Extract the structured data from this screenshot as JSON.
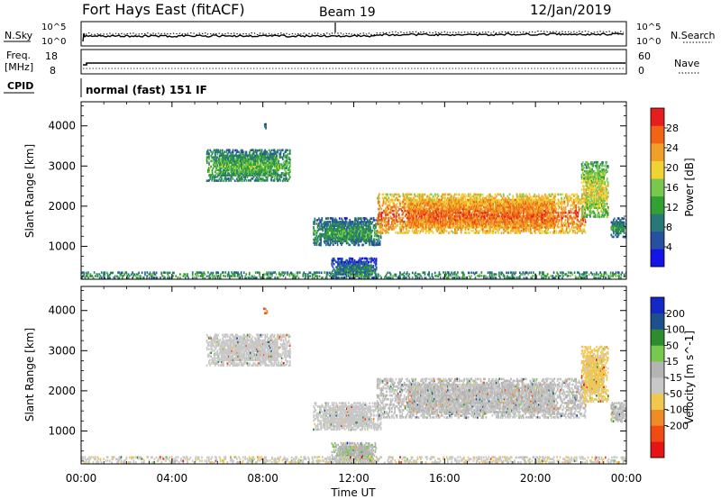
{
  "header": {
    "title": "Fort Hays East (fitACF)",
    "beam": "Beam 19",
    "date": "12/Jan/2019"
  },
  "noise_panel": {
    "left_label": "N.Sky",
    "right_label": "N.Search",
    "left_ticks": [
      "10^5",
      "10^0"
    ],
    "right_ticks": [
      "10^5",
      "10^0"
    ]
  },
  "freq_panel": {
    "left_label_1": "Freq.",
    "left_label_2": "[MHz]",
    "left_ticks": [
      "18",
      "8"
    ],
    "right_label": "Nave",
    "right_ticks": [
      "60",
      "0"
    ]
  },
  "cpid": {
    "label": "CPID",
    "value": "normal (fast) 151 IF"
  },
  "colors": {
    "power_scale": [
      "#1414e6",
      "#2850a0",
      "#287878",
      "#32a032",
      "#78c850",
      "#f0d232",
      "#f0a028",
      "#f06414",
      "#e61e1e"
    ],
    "velocity_scale": [
      "#e61414",
      "#f04b14",
      "#f08c28",
      "#f0c850",
      "#c8c8c8",
      "#b4b4b4",
      "#78c850",
      "#2d8c2d",
      "#1e508c",
      "#1428c8"
    ]
  },
  "chart_data": [
    {
      "type": "heatmap",
      "title": "Power",
      "xlabel": "",
      "ylabel": "Slant Range [km]",
      "x_ticks": [
        "00:00",
        "04:00",
        "08:00",
        "12:00",
        "16:00",
        "20:00",
        "00:00"
      ],
      "xlim": [
        0,
        24
      ],
      "y_ticks": [
        1000,
        2000,
        3000,
        4000
      ],
      "ylim": [
        180,
        4600
      ],
      "colorbar": {
        "label": "Power [dB]",
        "ticks": [
          4,
          8,
          12,
          16,
          20,
          24,
          28
        ],
        "range": [
          0,
          32
        ]
      },
      "regions": [
        {
          "t": [
            5.5,
            9.2
          ],
          "r": [
            2600,
            3400
          ],
          "level": 11
        },
        {
          "t": [
            10.2,
            13.2
          ],
          "r": [
            1000,
            1700
          ],
          "level": 9
        },
        {
          "t": [
            13.0,
            22.2
          ],
          "r": [
            1300,
            2300
          ],
          "level": 23
        },
        {
          "t": [
            22.0,
            23.2
          ],
          "r": [
            1700,
            3100
          ],
          "level": 16
        },
        {
          "t": [
            23.3,
            24.0
          ],
          "r": [
            1200,
            1700
          ],
          "level": 8
        },
        {
          "t": [
            8.0,
            8.2
          ],
          "r": [
            3900,
            4050
          ],
          "level": 7
        },
        {
          "t": [
            11.0,
            13.0
          ],
          "r": [
            180,
            700
          ],
          "level": 6
        },
        {
          "t": [
            0.0,
            24.0
          ],
          "r": [
            180,
            350
          ],
          "level": 10
        }
      ]
    },
    {
      "type": "heatmap",
      "title": "Velocity",
      "xlabel": "Time UT",
      "ylabel": "Slant Range [km]",
      "x_ticks": [
        "00:00",
        "04:00",
        "08:00",
        "12:00",
        "16:00",
        "20:00",
        "00:00"
      ],
      "xlim": [
        0,
        24
      ],
      "y_ticks": [
        1000,
        2000,
        3000,
        4000
      ],
      "ylim": [
        180,
        4600
      ],
      "colorbar": {
        "label": "Velocity [m s^-1]",
        "ticks": [
          200,
          100,
          50,
          15,
          -15,
          -50,
          -100,
          -200
        ],
        "range": [
          -250,
          250
        ]
      },
      "regions": [
        {
          "t": [
            5.5,
            9.2
          ],
          "r": [
            2600,
            3400
          ],
          "value": -20
        },
        {
          "t": [
            10.2,
            13.2
          ],
          "r": [
            1000,
            1700
          ],
          "value": -30
        },
        {
          "t": [
            13.0,
            22.2
          ],
          "r": [
            1300,
            2300
          ],
          "value": 0
        },
        {
          "t": [
            22.0,
            23.2
          ],
          "r": [
            1700,
            3100
          ],
          "value": -60
        },
        {
          "t": [
            23.3,
            24.0
          ],
          "r": [
            1200,
            1700
          ],
          "value": 5
        },
        {
          "t": [
            8.0,
            8.2
          ],
          "r": [
            3900,
            4050
          ],
          "value": -150
        },
        {
          "t": [
            11.0,
            13.0
          ],
          "r": [
            180,
            700
          ],
          "value": 40
        },
        {
          "t": [
            0.0,
            24.0
          ],
          "r": [
            180,
            350
          ],
          "value": -40
        }
      ]
    }
  ]
}
